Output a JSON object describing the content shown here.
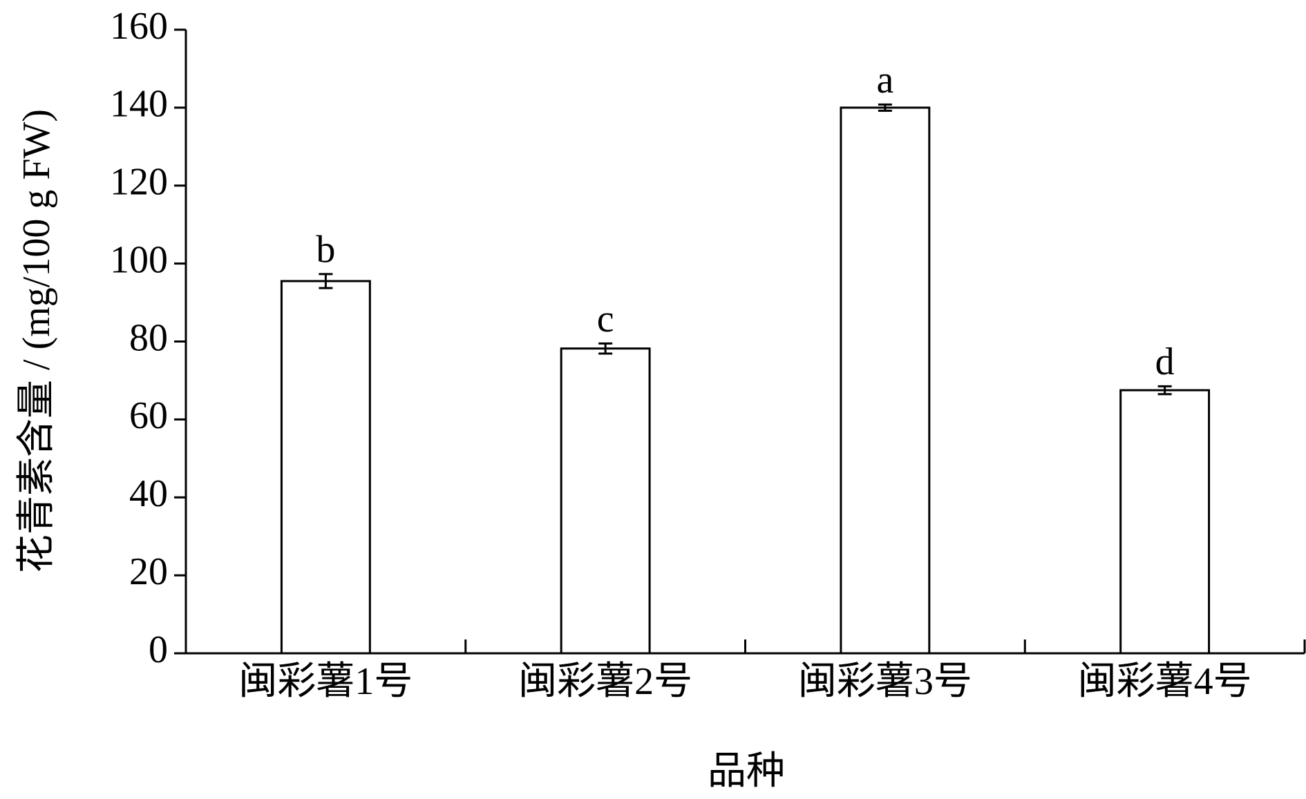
{
  "chart_data": {
    "type": "bar",
    "ylabel": "花青素含量 / (mg/100 g FW)",
    "xlabel": "品种",
    "categories": [
      "闽彩薯1号",
      "闽彩薯2号",
      "闽彩薯3号",
      "闽彩薯4号"
    ],
    "values": [
      95.5,
      78.2,
      140,
      67.5
    ],
    "errors": [
      1.8,
      1.3,
      0.8,
      1.0
    ],
    "significance": [
      "b",
      "c",
      "a",
      "d"
    ],
    "color": "#ffffff",
    "edgecolor": "#000000",
    "ylim": [
      0,
      160
    ],
    "yticks": [
      0,
      20,
      40,
      60,
      80,
      100,
      120,
      140,
      160
    ],
    "grid": false
  }
}
